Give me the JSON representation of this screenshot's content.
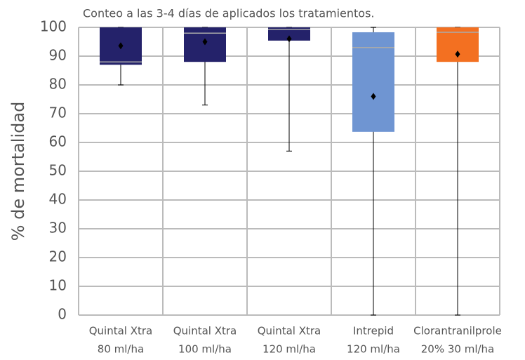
{
  "chart_data": {
    "type": "box",
    "title": "Conteo a las 3-4 días de aplicados los tratamientos.",
    "y_label": "% de mortalidad",
    "categories": [
      [
        "Quintal Xtra",
        "80 ml/ha"
      ],
      [
        "Quintal Xtra",
        "100 ml/ha"
      ],
      [
        "Quintal Xtra",
        "120 ml/ha"
      ],
      [
        "Intrepid",
        "120 ml/ha"
      ],
      [
        "Clorantranilprole",
        "20% 30 ml/ha"
      ]
    ],
    "boxes": [
      {
        "min": 80,
        "q1": 87,
        "median": 88,
        "q3": 100,
        "max": 100,
        "mean": 93.6,
        "color": "#24226a"
      },
      {
        "min": 73,
        "q1": 88,
        "median": 98,
        "q3": 100,
        "max": 100,
        "mean": 95,
        "color": "#24226a"
      },
      {
        "min": 57,
        "q1": 95.4,
        "median": 99.3,
        "q3": 100,
        "max": 100,
        "mean": 96,
        "color": "#24226a"
      },
      {
        "min": 0,
        "q1": 63.7,
        "median": 93,
        "q3": 98.3,
        "max": 100,
        "mean": 76,
        "color": "#6f95d2"
      },
      {
        "min": 0,
        "q1": 88,
        "median": 98.3,
        "q3": 100,
        "max": 100,
        "mean": 90.7,
        "color": "#f37021"
      }
    ],
    "ylim": [
      0,
      100
    ],
    "yticks": [
      0,
      10,
      20,
      30,
      40,
      50,
      60,
      70,
      80,
      90,
      100
    ],
    "grid": true
  }
}
